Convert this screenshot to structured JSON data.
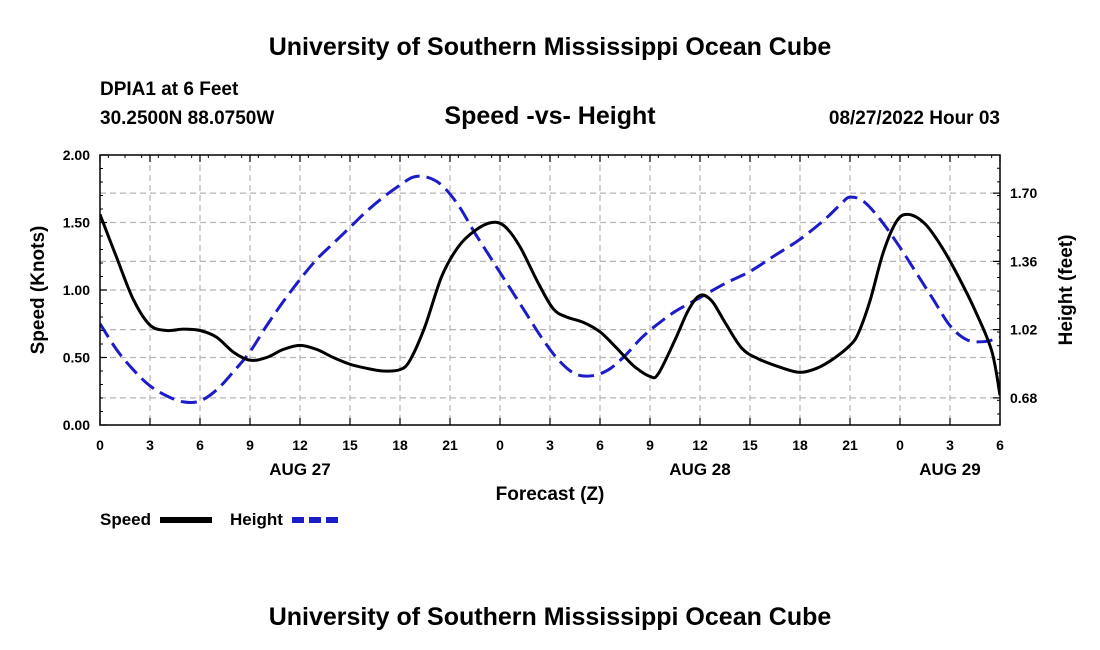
{
  "header": {
    "title": "University of Southern Mississippi Ocean Cube",
    "station": "DPIA1 at 6 Feet",
    "coords": "30.2500N  88.0750W",
    "date": "08/27/2022 Hour 03"
  },
  "footer": {
    "title": "University of Southern Mississippi Ocean Cube"
  },
  "colors": {
    "speed": "#000000",
    "height": "#1c1cc8",
    "grid": "#b4b4b4"
  },
  "chart_data": {
    "type": "line",
    "title": "Speed -vs- Height",
    "xlabel": "Forecast (Z)",
    "ylabel": "Speed (Knots)",
    "y2label": "Height (feet)",
    "xlim": [
      0,
      54
    ],
    "ylim": [
      0,
      2
    ],
    "y2lim": [
      0.545,
      1.89
    ],
    "x_ticks": [
      {
        "x": 0,
        "label": "0"
      },
      {
        "x": 3,
        "label": "3"
      },
      {
        "x": 6,
        "label": "6"
      },
      {
        "x": 9,
        "label": "9"
      },
      {
        "x": 12,
        "label": "12"
      },
      {
        "x": 15,
        "label": "15"
      },
      {
        "x": 18,
        "label": "18"
      },
      {
        "x": 21,
        "label": "21"
      },
      {
        "x": 24,
        "label": "0"
      },
      {
        "x": 27,
        "label": "3"
      },
      {
        "x": 30,
        "label": "6"
      },
      {
        "x": 33,
        "label": "9"
      },
      {
        "x": 36,
        "label": "12"
      },
      {
        "x": 39,
        "label": "15"
      },
      {
        "x": 42,
        "label": "18"
      },
      {
        "x": 45,
        "label": "21"
      },
      {
        "x": 48,
        "label": "0"
      },
      {
        "x": 51,
        "label": "3"
      },
      {
        "x": 54,
        "label": "6"
      }
    ],
    "date_labels": [
      {
        "x": 12,
        "label": "AUG 27"
      },
      {
        "x": 36,
        "label": "AUG 28"
      },
      {
        "x": 51,
        "label": "AUG 29"
      }
    ],
    "y_ticks": [
      {
        "v": 0,
        "label": "0.00"
      },
      {
        "v": 0.5,
        "label": "0.50"
      },
      {
        "v": 1,
        "label": "1.00"
      },
      {
        "v": 1.5,
        "label": "1.50"
      },
      {
        "v": 2,
        "label": "2.00"
      }
    ],
    "y2_ticks": [
      {
        "v": 0.68,
        "label": "0.68"
      },
      {
        "v": 1.02,
        "label": "1.02"
      },
      {
        "v": 1.36,
        "label": "1.36"
      },
      {
        "v": 1.7,
        "label": "1.70"
      }
    ],
    "series": [
      {
        "name": "Speed",
        "axis": "left",
        "points": [
          [
            0,
            1.56
          ],
          [
            1,
            1.24
          ],
          [
            2,
            0.93
          ],
          [
            3,
            0.74
          ],
          [
            4,
            0.7
          ],
          [
            5,
            0.71
          ],
          [
            6,
            0.7
          ],
          [
            7,
            0.65
          ],
          [
            8,
            0.54
          ],
          [
            9,
            0.48
          ],
          [
            10,
            0.5
          ],
          [
            11,
            0.56
          ],
          [
            12,
            0.59
          ],
          [
            13,
            0.56
          ],
          [
            14,
            0.5
          ],
          [
            15,
            0.45
          ],
          [
            16,
            0.42
          ],
          [
            17,
            0.4
          ],
          [
            18,
            0.41
          ],
          [
            18.6,
            0.48
          ],
          [
            19.5,
            0.73
          ],
          [
            20.5,
            1.1
          ],
          [
            21.5,
            1.32
          ],
          [
            22.5,
            1.44
          ],
          [
            23.5,
            1.5
          ],
          [
            24.3,
            1.47
          ],
          [
            25.2,
            1.32
          ],
          [
            26.3,
            1.05
          ],
          [
            27.2,
            0.86
          ],
          [
            28,
            0.8
          ],
          [
            29,
            0.76
          ],
          [
            30,
            0.69
          ],
          [
            31,
            0.57
          ],
          [
            32,
            0.44
          ],
          [
            33,
            0.36
          ],
          [
            33.5,
            0.38
          ],
          [
            34.5,
            0.63
          ],
          [
            35.3,
            0.85
          ],
          [
            36,
            0.96
          ],
          [
            36.7,
            0.92
          ],
          [
            37.5,
            0.76
          ],
          [
            38.5,
            0.57
          ],
          [
            39.5,
            0.49
          ],
          [
            41,
            0.42
          ],
          [
            42,
            0.39
          ],
          [
            43,
            0.42
          ],
          [
            44,
            0.49
          ],
          [
            45,
            0.59
          ],
          [
            45.5,
            0.68
          ],
          [
            46.2,
            0.92
          ],
          [
            47,
            1.28
          ],
          [
            47.8,
            1.51
          ],
          [
            48.5,
            1.56
          ],
          [
            49.5,
            1.49
          ],
          [
            50.5,
            1.32
          ],
          [
            51.5,
            1.1
          ],
          [
            52.5,
            0.85
          ],
          [
            53.5,
            0.55
          ],
          [
            54,
            0.22
          ]
        ]
      },
      {
        "name": "Height",
        "axis": "right",
        "points": [
          [
            0,
            1.05
          ],
          [
            1,
            0.92
          ],
          [
            2,
            0.82
          ],
          [
            3,
            0.74
          ],
          [
            4,
            0.69
          ],
          [
            5,
            0.66
          ],
          [
            6,
            0.665
          ],
          [
            7,
            0.72
          ],
          [
            8,
            0.81
          ],
          [
            9,
            0.91
          ],
          [
            10,
            1.04
          ],
          [
            11,
            1.16
          ],
          [
            12,
            1.27
          ],
          [
            13,
            1.37
          ],
          [
            14,
            1.45
          ],
          [
            15,
            1.53
          ],
          [
            16,
            1.61
          ],
          [
            17,
            1.68
          ],
          [
            18,
            1.74
          ],
          [
            18.8,
            1.78
          ],
          [
            19.6,
            1.78
          ],
          [
            20.5,
            1.74
          ],
          [
            21.5,
            1.64
          ],
          [
            22.5,
            1.5
          ],
          [
            23.5,
            1.37
          ],
          [
            24.5,
            1.24
          ],
          [
            25.5,
            1.11
          ],
          [
            26.5,
            0.98
          ],
          [
            27.5,
            0.87
          ],
          [
            28.5,
            0.8
          ],
          [
            29.5,
            0.79
          ],
          [
            30.5,
            0.82
          ],
          [
            31.5,
            0.89
          ],
          [
            32.5,
            0.98
          ],
          [
            33.5,
            1.05
          ],
          [
            34.5,
            1.11
          ],
          [
            36,
            1.18
          ],
          [
            37.5,
            1.25
          ],
          [
            39,
            1.31
          ],
          [
            40.5,
            1.39
          ],
          [
            42,
            1.47
          ],
          [
            43.5,
            1.57
          ],
          [
            44.5,
            1.65
          ],
          [
            45,
            1.68
          ],
          [
            45.8,
            1.66
          ],
          [
            46.8,
            1.57
          ],
          [
            48,
            1.43
          ],
          [
            49,
            1.3
          ],
          [
            50,
            1.17
          ],
          [
            51,
            1.04
          ],
          [
            52,
            0.97
          ],
          [
            53,
            0.96
          ],
          [
            54,
            0.98
          ]
        ]
      }
    ],
    "legend": [
      {
        "name": "Speed",
        "style": "solid"
      },
      {
        "name": "Height",
        "style": "dashed"
      }
    ]
  }
}
